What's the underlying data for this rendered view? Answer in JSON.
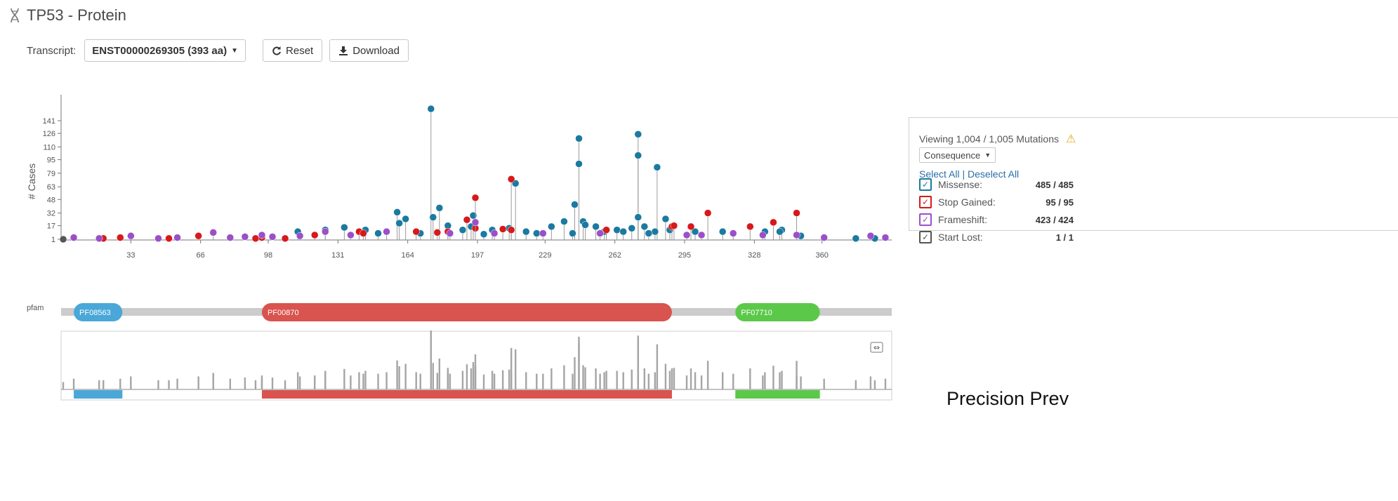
{
  "header": {
    "title": "TP53 - Protein",
    "icon": "dna-icon"
  },
  "toolbar": {
    "transcript_label": "Transcript:",
    "transcript_value": "ENST00000269305 (393 aa)",
    "reset_label": "Reset",
    "download_label": "Download"
  },
  "colors": {
    "missense": "#1b7aa0",
    "stop_gained": "#d7191c",
    "frameshift": "#9b4fc9",
    "start_lost": "#555555",
    "pfam_PF08563": "#4aa7d8",
    "pfam_PF00870": "#d9534f",
    "pfam_PF07710": "#5cc84a",
    "accent_link": "#2b6ea8"
  },
  "legend": {
    "viewing": "Viewing 1,004 / 1,005 Mutations",
    "color_by": "Consequence",
    "select_all": "Select All",
    "separator": "|",
    "deselect_all": "Deselect All",
    "items": [
      {
        "label": "Missense:",
        "count": "485 / 485",
        "checked": true
      },
      {
        "label": "Stop Gained:",
        "count": "95 / 95",
        "checked": true
      },
      {
        "label": "Frameshift:",
        "count": "423 / 424",
        "checked": true
      },
      {
        "label": "Start Lost:",
        "count": "1 / 1",
        "checked": true
      }
    ]
  },
  "watermark": "Precision Prev",
  "chart_data": {
    "type": "scatter",
    "subtype": "lollipop",
    "ylabel": "# Cases",
    "xlabel": "",
    "y_ticks": [
      1,
      17,
      32,
      48,
      63,
      79,
      95,
      110,
      126,
      141
    ],
    "x_ticks": [
      33,
      66,
      98,
      131,
      164,
      197,
      229,
      262,
      295,
      328,
      360
    ],
    "xlim": [
      0,
      393
    ],
    "ylim": [
      0,
      160
    ],
    "series": [
      {
        "name": "Missense",
        "points": [
          [
            175,
            155
          ],
          [
            273,
            125
          ],
          [
            245,
            120
          ],
          [
            273,
            100
          ],
          [
            245,
            90
          ],
          [
            282,
            86
          ],
          [
            215,
            67
          ],
          [
            179,
            38
          ],
          [
            243,
            42
          ],
          [
            159,
            33
          ],
          [
            176,
            27
          ],
          [
            195,
            29
          ],
          [
            247,
            22
          ],
          [
            238,
            22
          ],
          [
            273,
            27
          ],
          [
            286,
            25
          ],
          [
            163,
            25
          ],
          [
            248,
            18
          ],
          [
            160,
            20
          ],
          [
            183,
            17
          ],
          [
            194,
            16
          ],
          [
            212,
            14
          ],
          [
            232,
            16
          ],
          [
            253,
            16
          ],
          [
            263,
            12
          ],
          [
            270,
            14
          ],
          [
            276,
            16
          ],
          [
            288,
            12
          ],
          [
            134,
            15
          ],
          [
            125,
            12
          ],
          [
            144,
            12
          ],
          [
            112,
            10
          ],
          [
            190,
            12
          ],
          [
            204,
            12
          ],
          [
            220,
            10
          ],
          [
            257,
            10
          ],
          [
            266,
            10
          ],
          [
            281,
            10
          ],
          [
            300,
            10
          ],
          [
            313,
            10
          ],
          [
            333,
            10
          ],
          [
            341,
            12
          ],
          [
            340,
            10
          ],
          [
            150,
            8
          ],
          [
            170,
            8
          ],
          [
            200,
            7
          ],
          [
            225,
            8
          ],
          [
            242,
            8
          ],
          [
            278,
            8
          ],
          [
            350,
            5
          ],
          [
            376,
            2
          ],
          [
            385,
            2
          ]
        ]
      },
      {
        "name": "Stop Gained",
        "points": [
          [
            196,
            50
          ],
          [
            213,
            72
          ],
          [
            306,
            32
          ],
          [
            348,
            32
          ],
          [
            337,
            21
          ],
          [
            326,
            16
          ],
          [
            298,
            16
          ],
          [
            289,
            16
          ],
          [
            290,
            17
          ],
          [
            192,
            24
          ],
          [
            196,
            14
          ],
          [
            209,
            13
          ],
          [
            258,
            12
          ],
          [
            141,
            10
          ],
          [
            143,
            8
          ],
          [
            168,
            10
          ],
          [
            178,
            9
          ],
          [
            183,
            10
          ],
          [
            213,
            12
          ],
          [
            20,
            2
          ],
          [
            65,
            5
          ],
          [
            92,
            2
          ],
          [
            106,
            2
          ],
          [
            120,
            6
          ],
          [
            51,
            2
          ],
          [
            28,
            3
          ],
          [
            95,
            3
          ]
        ]
      },
      {
        "name": "Frameshift",
        "points": [
          [
            6,
            3
          ],
          [
            33,
            5
          ],
          [
            72,
            9
          ],
          [
            95,
            6
          ],
          [
            125,
            10
          ],
          [
            154,
            10
          ],
          [
            196,
            21
          ],
          [
            184,
            8
          ],
          [
            205,
            8
          ],
          [
            228,
            8
          ],
          [
            255,
            8
          ],
          [
            296,
            6
          ],
          [
            303,
            6
          ],
          [
            318,
            8
          ],
          [
            332,
            6
          ],
          [
            348,
            6
          ],
          [
            361,
            3
          ],
          [
            383,
            5
          ],
          [
            390,
            3
          ],
          [
            18,
            2
          ],
          [
            46,
            2
          ],
          [
            87,
            4
          ],
          [
            113,
            5
          ],
          [
            137,
            6
          ],
          [
            55,
            3
          ],
          [
            80,
            3
          ],
          [
            100,
            4
          ]
        ]
      },
      {
        "name": "Start Lost",
        "points": [
          [
            1,
            1
          ]
        ]
      }
    ],
    "domains": [
      {
        "name": "PF08563",
        "start": 6,
        "end": 29
      },
      {
        "name": "PF00870",
        "start": 95,
        "end": 289
      },
      {
        "name": "PF07710",
        "start": 319,
        "end": 359
      }
    ],
    "track_label": "pfam"
  }
}
